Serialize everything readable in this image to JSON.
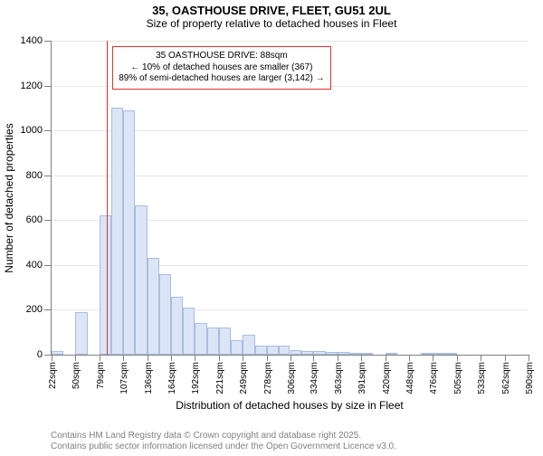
{
  "title_main": "35, OASTHOUSE DRIVE, FLEET, GU51 2UL",
  "title_sub": "Size of property relative to detached houses in Fleet",
  "y_axis_title": "Number of detached properties",
  "x_axis_title": "Distribution of detached houses by size in Fleet",
  "chart": {
    "type": "histogram",
    "background_color": "#ffffff",
    "grid_color": "#e6e6e6",
    "axis_color": "#808080",
    "bar_fill": "#dbe5f6",
    "bar_stroke": "#a9bde0",
    "y_min": 0,
    "y_max": 1400,
    "y_step": 200,
    "x_ticks": [
      22,
      50,
      79,
      107,
      136,
      164,
      192,
      221,
      249,
      278,
      306,
      334,
      363,
      391,
      420,
      448,
      476,
      505,
      533,
      562,
      590
    ],
    "x_unit": "sqm",
    "bin_edges": [
      22,
      36,
      50,
      65,
      79,
      93,
      107,
      121,
      136,
      150,
      164,
      178,
      192,
      207,
      221,
      235,
      249,
      264,
      278,
      292,
      306,
      320,
      334,
      349,
      363,
      377,
      391,
      405,
      420,
      434,
      448,
      462,
      476,
      490,
      505,
      519,
      533,
      547,
      562,
      576,
      590
    ],
    "bin_counts": [
      15,
      0,
      190,
      0,
      620,
      1100,
      1090,
      665,
      430,
      360,
      260,
      210,
      140,
      120,
      120,
      65,
      90,
      40,
      40,
      40,
      20,
      15,
      15,
      12,
      12,
      8,
      8,
      0,
      5,
      0,
      0,
      3,
      3,
      3,
      0,
      0,
      0,
      0,
      0,
      0
    ],
    "marker": {
      "at": 88,
      "color": "#e03030"
    },
    "annotation": {
      "border_color": "#e03030",
      "bg_color": "#ffffff",
      "line1": "35 OASTHOUSE DRIVE: 88sqm",
      "line2": "← 10% of detached houses are smaller (367)",
      "line3": "89% of semi-detached houses are larger (3,142) →"
    }
  },
  "footer_line1": "Contains HM Land Registry data © Crown copyright and database right 2025.",
  "footer_line2": "Contains public sector information licensed under the Open Government Licence v3.0."
}
